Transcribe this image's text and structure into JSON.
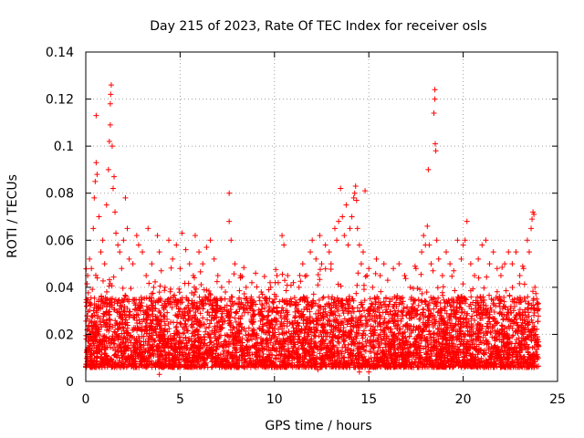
{
  "chart_data": {
    "type": "scatter",
    "title": "Day 215 of 2023, Rate Of TEC Index for receiver osls",
    "xlabel": "GPS time / hours",
    "ylabel": "ROTI / TECUs",
    "xlim": [
      0,
      25
    ],
    "ylim": [
      0,
      0.14
    ],
    "xticks": [
      0,
      5,
      10,
      15,
      20,
      25
    ],
    "yticks": [
      0,
      0.02,
      0.04,
      0.06,
      0.08,
      0.1,
      0.12,
      0.14
    ],
    "xtick_labels": [
      "0",
      "5",
      "10",
      "15",
      "20",
      "25"
    ],
    "ytick_labels": [
      "0",
      "0.02",
      "0.04",
      "0.06",
      "0.08",
      "0.1",
      "0.12",
      "0.14"
    ],
    "grid": true,
    "marker": "+",
    "color": "#ff0000",
    "series": [
      {
        "name": "ROTI",
        "points": [
          [
            0.05,
            0.032
          ],
          [
            0.1,
            0.045
          ],
          [
            0.2,
            0.052
          ],
          [
            0.3,
            0.048
          ],
          [
            0.4,
            0.065
          ],
          [
            0.45,
            0.078
          ],
          [
            0.5,
            0.085
          ],
          [
            0.55,
            0.093
          ],
          [
            0.6,
            0.088
          ],
          [
            0.55,
            0.113
          ],
          [
            0.7,
            0.07
          ],
          [
            0.8,
            0.055
          ],
          [
            0.9,
            0.06
          ],
          [
            1.0,
            0.05
          ],
          [
            1.1,
            0.075
          ],
          [
            1.2,
            0.09
          ],
          [
            1.25,
            0.102
          ],
          [
            1.3,
            0.109
          ],
          [
            1.3,
            0.118
          ],
          [
            1.32,
            0.122
          ],
          [
            1.35,
            0.126
          ],
          [
            1.4,
            0.1
          ],
          [
            1.45,
            0.082
          ],
          [
            1.5,
            0.087
          ],
          [
            1.55,
            0.072
          ],
          [
            1.6,
            0.063
          ],
          [
            1.7,
            0.058
          ],
          [
            1.8,
            0.055
          ],
          [
            1.9,
            0.048
          ],
          [
            2.0,
            0.06
          ],
          [
            2.1,
            0.078
          ],
          [
            2.2,
            0.065
          ],
          [
            2.3,
            0.052
          ],
          [
            2.5,
            0.05
          ],
          [
            2.7,
            0.062
          ],
          [
            2.8,
            0.058
          ],
          [
            3.0,
            0.055
          ],
          [
            3.2,
            0.045
          ],
          [
            3.3,
            0.065
          ],
          [
            3.5,
            0.05
          ],
          [
            3.6,
            0.04
          ],
          [
            3.8,
            0.062
          ],
          [
            3.9,
            0.055
          ],
          [
            4.0,
            0.047
          ],
          [
            4.2,
            0.04
          ],
          [
            4.4,
            0.06
          ],
          [
            4.6,
            0.052
          ],
          [
            4.8,
            0.058
          ],
          [
            5.0,
            0.048
          ],
          [
            5.1,
            0.063
          ],
          [
            5.3,
            0.056
          ],
          [
            5.5,
            0.05
          ],
          [
            5.7,
            0.045
          ],
          [
            5.8,
            0.062
          ],
          [
            6.0,
            0.055
          ],
          [
            6.2,
            0.05
          ],
          [
            6.4,
            0.057
          ],
          [
            6.6,
            0.06
          ],
          [
            6.8,
            0.052
          ],
          [
            7.0,
            0.045
          ],
          [
            7.2,
            0.04
          ],
          [
            7.4,
            0.038
          ],
          [
            7.6,
            0.08
          ],
          [
            7.6,
            0.068
          ],
          [
            7.7,
            0.06
          ],
          [
            7.9,
            0.05
          ],
          [
            8.2,
            0.045
          ],
          [
            8.5,
            0.04
          ],
          [
            8.8,
            0.042
          ],
          [
            9.0,
            0.046
          ],
          [
            9.3,
            0.038
          ],
          [
            9.6,
            0.035
          ],
          [
            9.8,
            0.04
          ],
          [
            10.0,
            0.037
          ],
          [
            10.2,
            0.042
          ],
          [
            10.4,
            0.062
          ],
          [
            10.5,
            0.058
          ],
          [
            10.7,
            0.045
          ],
          [
            11.0,
            0.042
          ],
          [
            11.3,
            0.04
          ],
          [
            11.5,
            0.05
          ],
          [
            11.7,
            0.045
          ],
          [
            11.9,
            0.055
          ],
          [
            12.0,
            0.06
          ],
          [
            12.2,
            0.052
          ],
          [
            12.4,
            0.062
          ],
          [
            12.5,
            0.05
          ],
          [
            12.7,
            0.058
          ],
          [
            12.9,
            0.055
          ],
          [
            13.0,
            0.05
          ],
          [
            13.2,
            0.065
          ],
          [
            13.3,
            0.06
          ],
          [
            13.4,
            0.068
          ],
          [
            13.5,
            0.082
          ],
          [
            13.6,
            0.07
          ],
          [
            13.7,
            0.062
          ],
          [
            13.8,
            0.075
          ],
          [
            13.9,
            0.058
          ],
          [
            14.0,
            0.065
          ],
          [
            14.1,
            0.07
          ],
          [
            14.2,
            0.078
          ],
          [
            14.25,
            0.08
          ],
          [
            14.3,
            0.083
          ],
          [
            14.35,
            0.077
          ],
          [
            14.4,
            0.065
          ],
          [
            14.5,
            0.058
          ],
          [
            14.6,
            0.05
          ],
          [
            14.7,
            0.055
          ],
          [
            14.8,
            0.081
          ],
          [
            14.9,
            0.045
          ],
          [
            15.0,
            0.048
          ],
          [
            15.2,
            0.04
          ],
          [
            15.4,
            0.052
          ],
          [
            15.6,
            0.045
          ],
          [
            15.8,
            0.05
          ],
          [
            16.0,
            0.043
          ],
          [
            16.3,
            0.048
          ],
          [
            16.6,
            0.05
          ],
          [
            16.9,
            0.045
          ],
          [
            17.2,
            0.04
          ],
          [
            17.5,
            0.048
          ],
          [
            17.8,
            0.055
          ],
          [
            17.9,
            0.062
          ],
          [
            18.0,
            0.058
          ],
          [
            18.1,
            0.066
          ],
          [
            18.15,
            0.09
          ],
          [
            18.2,
            0.058
          ],
          [
            18.3,
            0.05
          ],
          [
            18.4,
            0.047
          ],
          [
            18.45,
            0.114
          ],
          [
            18.5,
            0.124
          ],
          [
            18.5,
            0.12
          ],
          [
            18.52,
            0.101
          ],
          [
            18.55,
            0.098
          ],
          [
            18.6,
            0.06
          ],
          [
            18.7,
            0.052
          ],
          [
            18.9,
            0.045
          ],
          [
            19.1,
            0.055
          ],
          [
            19.3,
            0.05
          ],
          [
            19.5,
            0.047
          ],
          [
            19.7,
            0.06
          ],
          [
            19.9,
            0.052
          ],
          [
            20.0,
            0.058
          ],
          [
            20.1,
            0.06
          ],
          [
            20.2,
            0.068
          ],
          [
            20.4,
            0.05
          ],
          [
            20.6,
            0.045
          ],
          [
            20.8,
            0.052
          ],
          [
            21.0,
            0.058
          ],
          [
            21.2,
            0.06
          ],
          [
            21.4,
            0.05
          ],
          [
            21.6,
            0.055
          ],
          [
            21.8,
            0.048
          ],
          [
            22.0,
            0.045
          ],
          [
            22.2,
            0.05
          ],
          [
            22.4,
            0.055
          ],
          [
            22.6,
            0.05
          ],
          [
            22.8,
            0.055
          ],
          [
            23.0,
            0.045
          ],
          [
            23.2,
            0.048
          ],
          [
            23.4,
            0.06
          ],
          [
            23.5,
            0.055
          ],
          [
            23.6,
            0.065
          ],
          [
            23.65,
            0.069
          ],
          [
            23.7,
            0.072
          ],
          [
            23.75,
            0.071
          ],
          [
            23.8,
            0.04
          ],
          [
            23.9,
            0.035
          ],
          [
            23.95,
            0.03
          ],
          [
            12.3,
            0.005
          ],
          [
            14.5,
            0.004
          ],
          [
            15.0,
            0.004
          ],
          [
            3.9,
            0.003
          ],
          [
            14.8,
            0.006
          ]
        ]
      }
    ]
  }
}
